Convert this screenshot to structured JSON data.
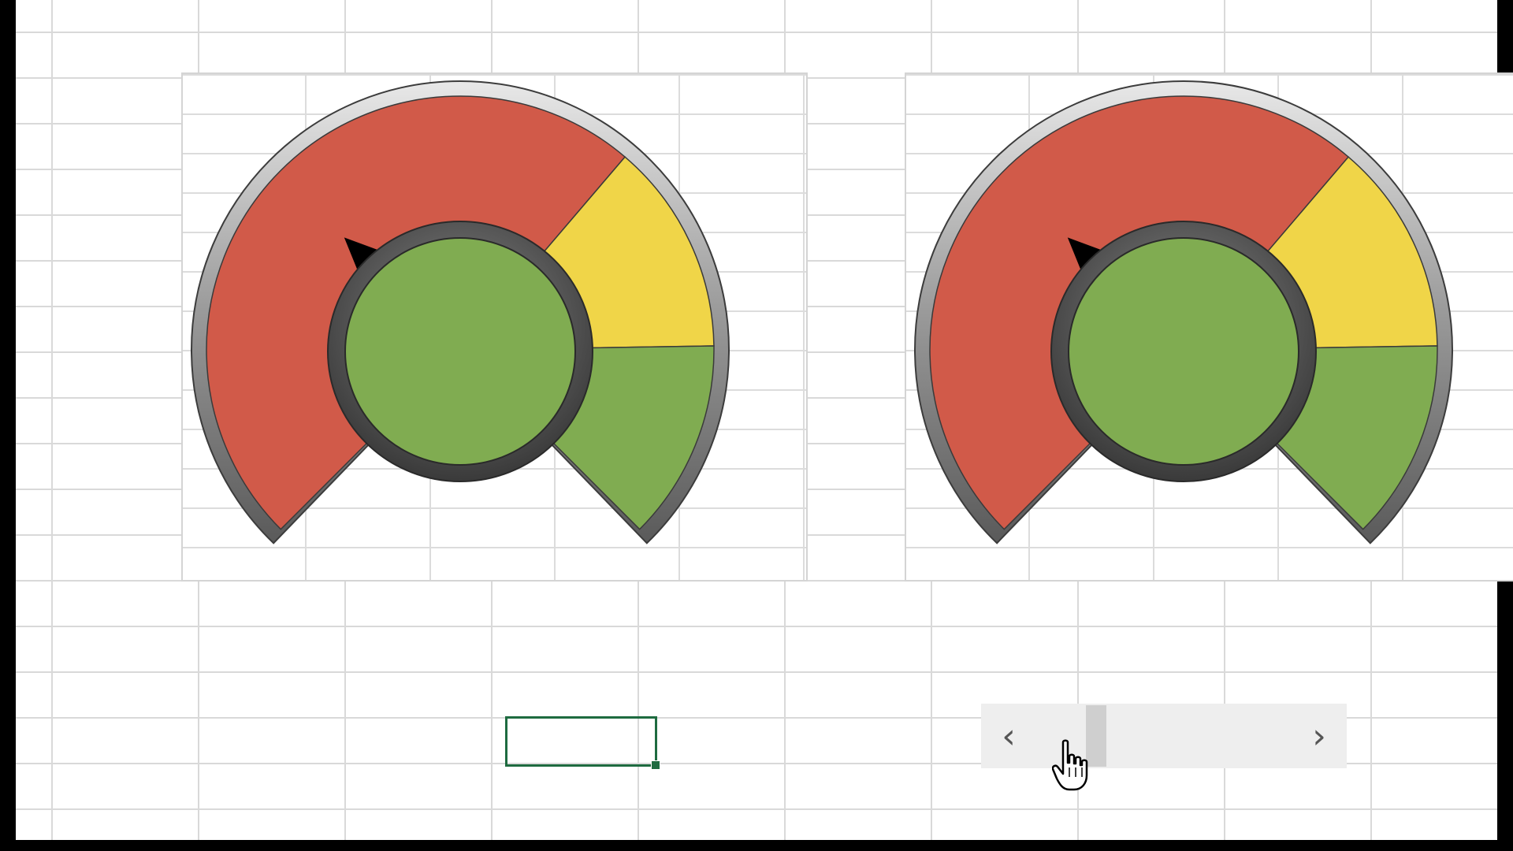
{
  "colors": {
    "red_zone": "#d15a49",
    "yellow_zone": "#f0d548",
    "green_zone": "#80ac51",
    "needle": "#000000",
    "selection_border": "#1e6b40",
    "gridline": "#d9d9d9"
  },
  "gauges": [
    {
      "zones": [
        {
          "name": "red",
          "from": 0,
          "to": 65
        },
        {
          "name": "yellow",
          "from": 65,
          "to": 83
        },
        {
          "name": "green",
          "from": 83,
          "to": 100
        }
      ],
      "needle_value": 33,
      "center_color": "#80ac51"
    },
    {
      "zones": [
        {
          "name": "red",
          "from": 0,
          "to": 65
        },
        {
          "name": "yellow",
          "from": 65,
          "to": 83
        },
        {
          "name": "green",
          "from": 83,
          "to": 100
        }
      ],
      "needle_value": 33,
      "center_color": "#80ac51"
    }
  ],
  "scrollbar": {
    "left_arrow": "‹",
    "right_arrow": "›",
    "value_fraction": 0.21
  },
  "icons": {
    "cursor": "hand-pointer-icon",
    "left": "chevron-left-icon",
    "right": "chevron-right-icon"
  }
}
